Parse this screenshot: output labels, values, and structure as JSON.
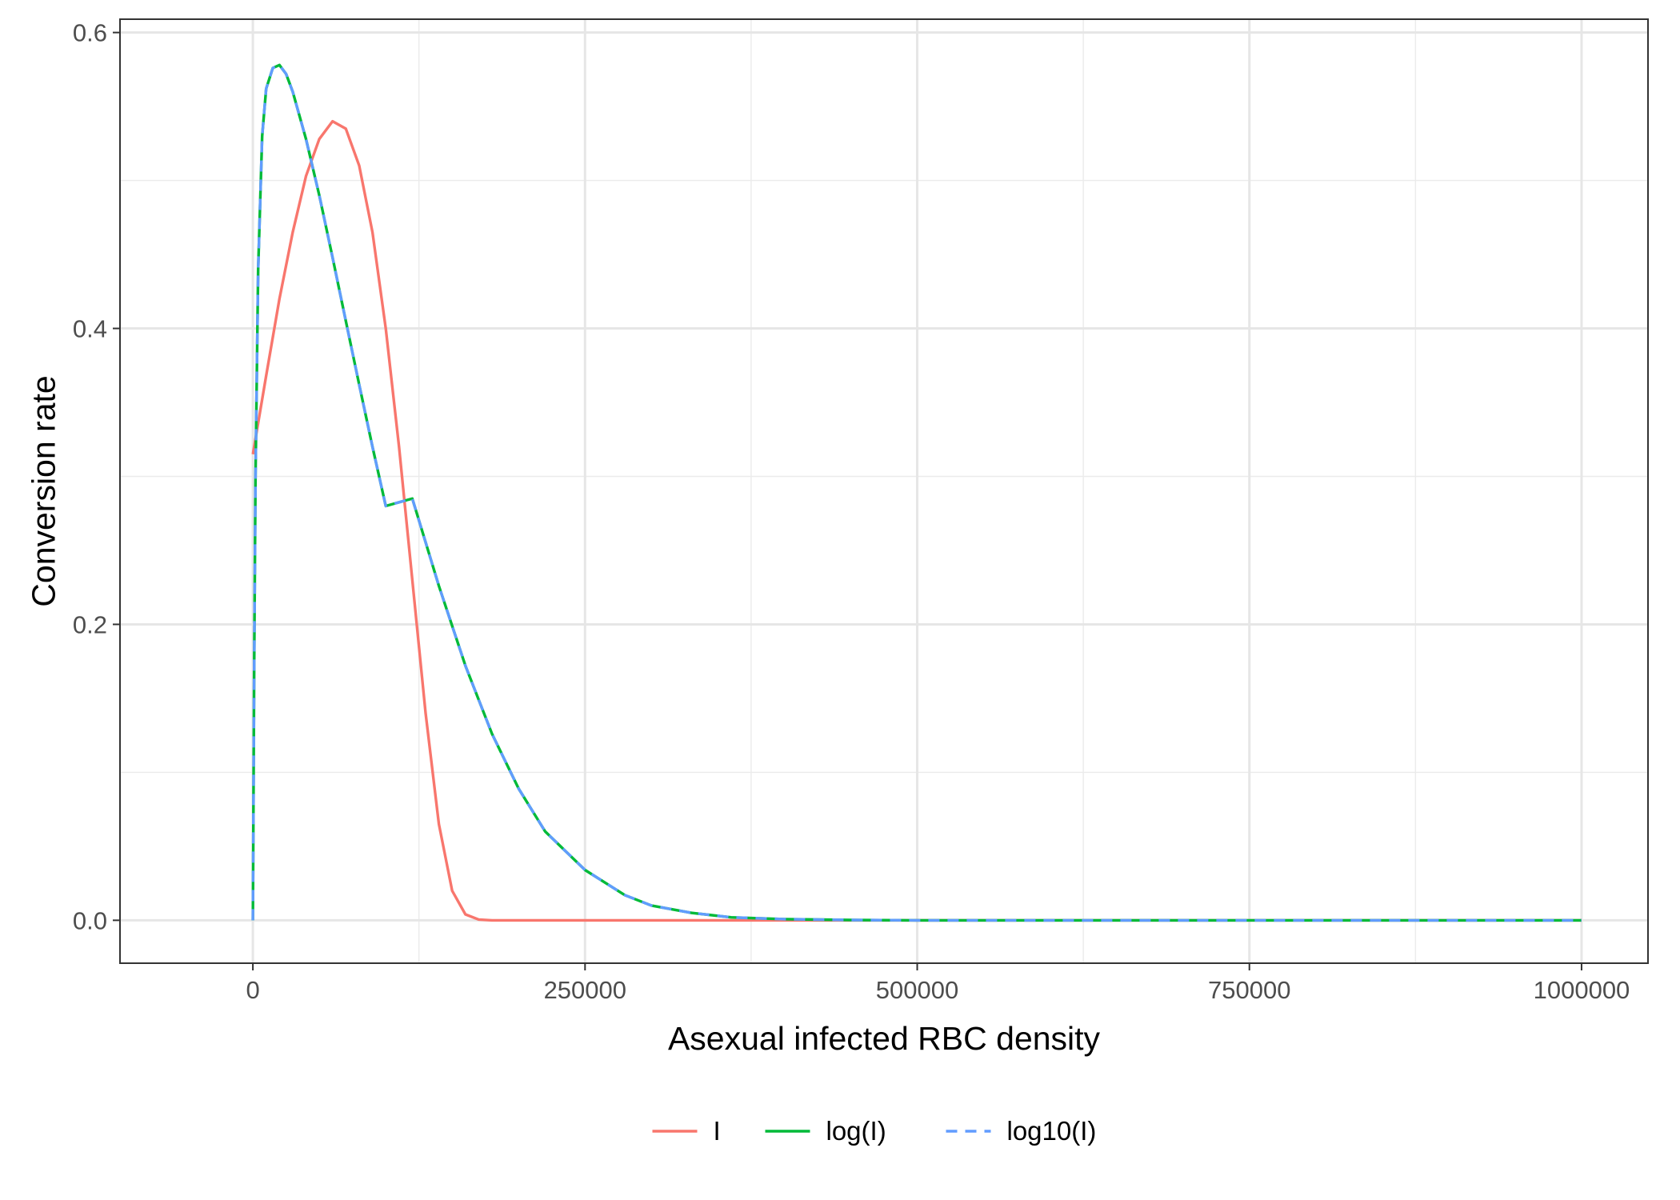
{
  "chart_data": {
    "type": "line",
    "title": "",
    "xlabel": "Asexual infected RBC density",
    "ylabel": "Conversion rate",
    "xlim": [
      -100000,
      1050000
    ],
    "ylim": [
      -0.029,
      0.609
    ],
    "x_ticks": [
      0,
      250000,
      500000,
      750000,
      1000000
    ],
    "x_tick_labels": [
      "0",
      "250000",
      "500000",
      "750000",
      "1000000"
    ],
    "y_ticks": [
      0.0,
      0.2,
      0.4,
      0.6
    ],
    "y_tick_labels": [
      "0.0",
      "0.2",
      "0.4",
      "0.6"
    ],
    "x_minor_ticks": [
      125000,
      375000,
      625000,
      875000
    ],
    "y_minor_ticks": [
      0.1,
      0.3,
      0.5
    ],
    "grid": true,
    "legend_position": "bottom",
    "series": [
      {
        "name": "I",
        "color": "#F8766D",
        "dashed": false,
        "x": [
          0,
          10000,
          20000,
          30000,
          40000,
          50000,
          60000,
          70000,
          80000,
          90000,
          100000,
          110000,
          120000,
          130000,
          140000,
          150000,
          160000,
          170000,
          180000,
          200000,
          250000,
          300000,
          400000,
          500000,
          600000,
          700000,
          800000,
          900000,
          1000000
        ],
        "y": [
          0.315,
          0.368,
          0.42,
          0.465,
          0.503,
          0.528,
          0.54,
          0.535,
          0.51,
          0.465,
          0.4,
          0.32,
          0.23,
          0.14,
          0.065,
          0.02,
          0.004,
          0.0005,
          0.0,
          0.0,
          0.0,
          0.0,
          0.0,
          0.0,
          0.0,
          0.0,
          0.0,
          0.0,
          0.0
        ]
      },
      {
        "name": "log(I)",
        "color": "#00BA38",
        "dashed": false,
        "x": [
          0,
          1000,
          2000,
          4000,
          7000,
          10000,
          15000,
          20000,
          25000,
          30000,
          40000,
          50000,
          60000,
          70000,
          80000,
          90000,
          100000,
          120000,
          140000,
          160000,
          180000,
          200000,
          220000,
          250000,
          280000,
          300000,
          330000,
          360000,
          400000,
          450000,
          500000,
          600000,
          700000,
          800000,
          900000,
          1000000
        ],
        "y": [
          0.0,
          0.17,
          0.3,
          0.44,
          0.53,
          0.562,
          0.576,
          0.578,
          0.572,
          0.56,
          0.528,
          0.49,
          0.448,
          0.405,
          0.362,
          0.32,
          0.28,
          0.285,
          0.226,
          0.172,
          0.126,
          0.089,
          0.06,
          0.034,
          0.017,
          0.01,
          0.005,
          0.002,
          0.0008,
          0.0002,
          0.0,
          0.0,
          0.0,
          0.0,
          0.0,
          0.0
        ]
      },
      {
        "name": "log10(I)",
        "color": "#619CFF",
        "dashed": true,
        "x": [
          0,
          1000,
          2000,
          4000,
          7000,
          10000,
          15000,
          20000,
          25000,
          30000,
          40000,
          50000,
          60000,
          70000,
          80000,
          90000,
          100000,
          120000,
          140000,
          160000,
          180000,
          200000,
          220000,
          250000,
          280000,
          300000,
          330000,
          360000,
          400000,
          450000,
          500000,
          600000,
          700000,
          800000,
          900000,
          1000000
        ],
        "y": [
          0.0,
          0.17,
          0.3,
          0.44,
          0.53,
          0.562,
          0.576,
          0.578,
          0.572,
          0.56,
          0.528,
          0.49,
          0.448,
          0.405,
          0.362,
          0.32,
          0.28,
          0.285,
          0.226,
          0.172,
          0.126,
          0.089,
          0.06,
          0.034,
          0.017,
          0.01,
          0.005,
          0.002,
          0.0008,
          0.0002,
          0.0,
          0.0,
          0.0,
          0.0,
          0.0,
          0.0
        ]
      }
    ]
  }
}
